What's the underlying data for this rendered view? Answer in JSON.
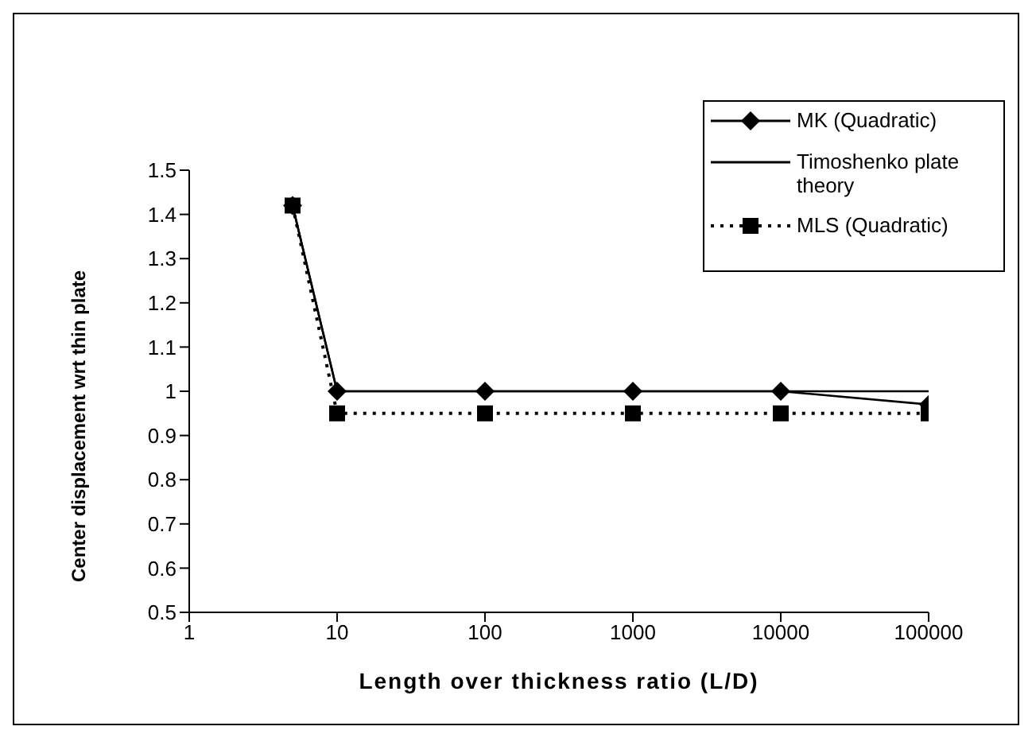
{
  "chart_data": {
    "type": "line",
    "xlabel": "Length over thickness ratio (L/D)",
    "ylabel": "Center displacement wrt thin plate",
    "log": "x",
    "xlim": [
      1,
      100000
    ],
    "xticks": [
      1,
      10,
      100,
      1000,
      10000,
      100000
    ],
    "ylim": [
      0.5,
      1.5
    ],
    "yticks": [
      0.5,
      0.6,
      0.7,
      0.8,
      0.9,
      1,
      1.1,
      1.2,
      1.3,
      1.4,
      1.5
    ],
    "grid": false,
    "legend": "top right",
    "x": [
      5,
      10,
      100,
      1000,
      10000,
      100000
    ],
    "series": [
      {
        "name": "MK (Quadratic)",
        "color": "#000000",
        "marker": "diamond",
        "line_style": "solid",
        "values": [
          1.42,
          1.0,
          1.0,
          1.0,
          1.0,
          0.97
        ]
      },
      {
        "name": "Timoshenko plate theory",
        "color": "#000000",
        "marker": "none",
        "line_style": "solid",
        "values": [
          1.42,
          1.0,
          1.0,
          1.0,
          1.0,
          1.0
        ]
      },
      {
        "name": "MLS (Quadratic)",
        "color": "#000000",
        "marker": "square",
        "line_style": "dotted",
        "values": [
          1.42,
          0.95,
          0.95,
          0.95,
          0.95,
          0.95
        ]
      }
    ]
  }
}
